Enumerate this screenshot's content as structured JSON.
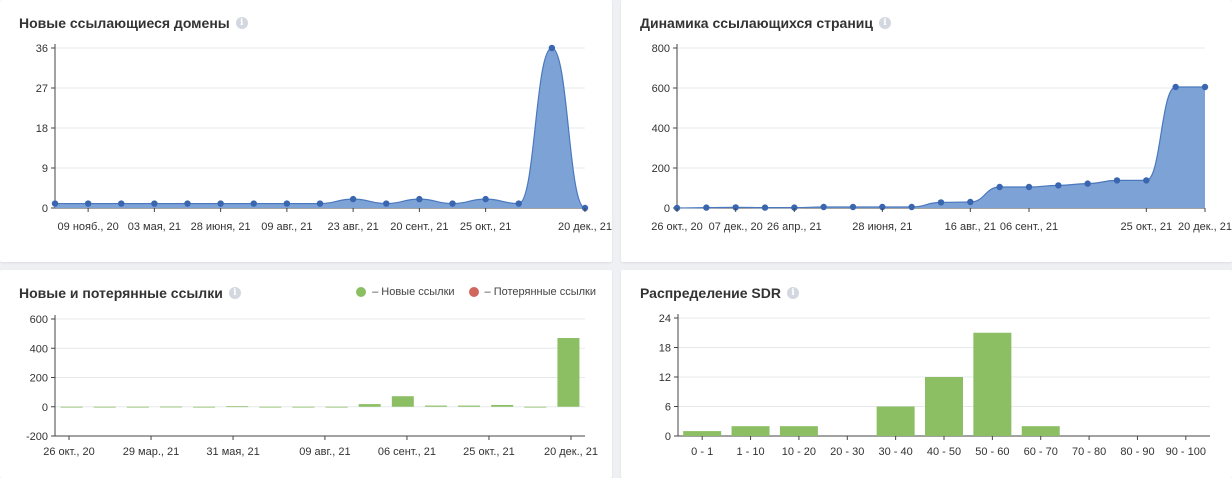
{
  "colors": {
    "area_fill": "#7da2d6",
    "area_stroke": "#4a78be",
    "point": "#3a66b0",
    "bar_green": "#8cbf64",
    "bar_red": "#d0675e",
    "grid": "#e6e8ec",
    "axis": "#444444"
  },
  "chart_data": [
    {
      "id": "new-domains",
      "type": "area",
      "title": "Новые ссылающиеся домены",
      "x_tick_labels": [
        "09 нояб., 20",
        "03 мая, 21",
        "28 июня, 21",
        "09 авг., 21",
        "23 авг., 21",
        "20 сент., 21",
        "25 окт., 21",
        "20 дек., 21"
      ],
      "y_ticks": [
        0,
        9,
        18,
        27,
        36
      ],
      "ylim": [
        0,
        36
      ],
      "values": [
        1,
        1,
        1,
        1,
        1,
        1,
        1,
        1,
        1,
        2,
        1,
        2,
        1,
        2,
        1,
        36,
        0
      ],
      "grid": true
    },
    {
      "id": "referring-pages",
      "type": "area",
      "title": "Динамика ссылающихся страниц",
      "x_tick_labels": [
        "26 окт., 20",
        "07 дек., 20",
        "26 апр., 21",
        "28 июня, 21",
        "16 авг., 21",
        "06 сент., 21",
        "25 окт., 21",
        "20 дек., 21"
      ],
      "y_ticks": [
        0,
        200,
        400,
        600,
        800
      ],
      "ylim": [
        0,
        800
      ],
      "values": [
        0,
        2,
        3,
        2,
        2,
        5,
        5,
        5,
        5,
        28,
        30,
        105,
        105,
        113,
        122,
        138,
        138,
        605,
        605
      ],
      "grid": true
    },
    {
      "id": "new-lost-links",
      "type": "bar",
      "title": "Новые и потерянные ссылки",
      "legend": [
        "– Новые ссылки",
        "– Потерянные ссылки"
      ],
      "x_tick_labels": [
        "26 окт., 20",
        "29 мар., 21",
        "31 мая, 21",
        "09 авг., 21",
        "06 сент., 21",
        "25 окт., 21",
        "20 дек., 21"
      ],
      "y_ticks": [
        -200,
        0,
        200,
        400,
        600
      ],
      "ylim": [
        -200,
        600
      ],
      "series": [
        {
          "name": "Новые ссылки",
          "values": [
            0,
            0,
            0,
            1,
            0,
            3,
            0,
            0,
            0,
            18,
            72,
            8,
            8,
            12,
            0,
            470
          ]
        },
        {
          "name": "Потерянные ссылки",
          "values": [
            0,
            0,
            0,
            0,
            0,
            0,
            0,
            0,
            0,
            0,
            0,
            0,
            0,
            0,
            0,
            0
          ]
        }
      ],
      "grid": true,
      "legend_position": "top-right"
    },
    {
      "id": "sdr-distribution",
      "type": "bar",
      "title": "Распределение SDR",
      "categories": [
        "0 - 1",
        "1 - 10",
        "10 - 20",
        "20 - 30",
        "30 - 40",
        "40 - 50",
        "50 - 60",
        "60 - 70",
        "70 - 80",
        "80 - 90",
        "90 - 100"
      ],
      "values": [
        1,
        2,
        2,
        0,
        6,
        12,
        21,
        2,
        0,
        0,
        0
      ],
      "y_ticks": [
        0,
        6,
        12,
        18,
        24
      ],
      "ylim": [
        0,
        24
      ],
      "grid": true
    }
  ]
}
